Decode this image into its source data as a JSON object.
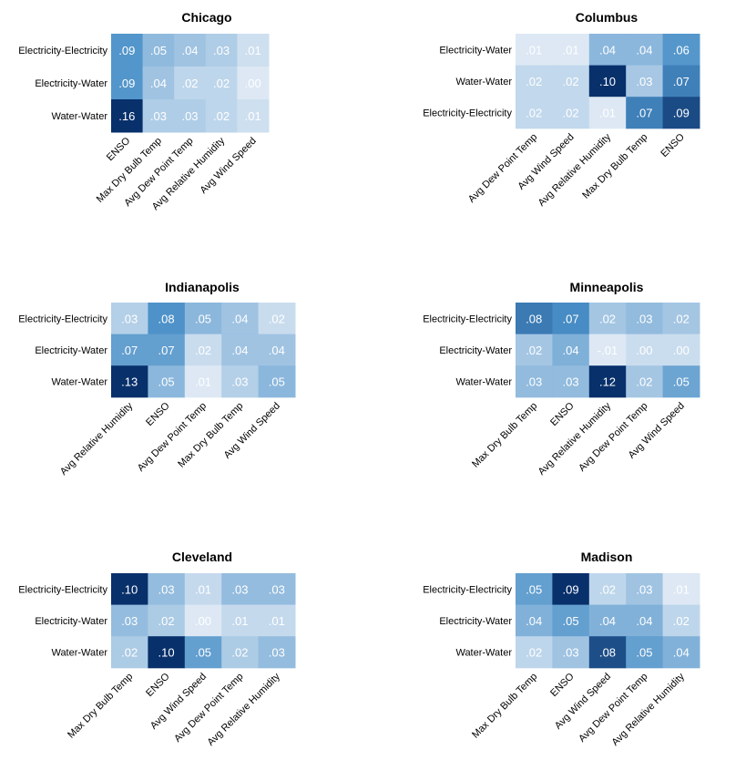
{
  "chart_data": [
    {
      "type": "heatmap",
      "title": "Chicago",
      "rows": [
        "Electricity-Electricity",
        "Electricity-Water",
        "Water-Water"
      ],
      "columns": [
        "ENSO",
        "Max Dry Bulb Temp",
        "Avg Dew Point Temp",
        "Avg Relative Humidity",
        "Avg Wind Speed"
      ],
      "values": [
        [
          0.09,
          0.05,
          0.04,
          0.03,
          0.01
        ],
        [
          0.09,
          0.04,
          0.02,
          0.02,
          0.0
        ],
        [
          0.16,
          0.03,
          0.03,
          0.02,
          0.01
        ]
      ],
      "labels": [
        [
          ".09",
          ".05",
          ".04",
          ".03",
          ".01"
        ],
        [
          ".09",
          ".04",
          ".02",
          ".02",
          ".00"
        ],
        [
          ".16",
          ".03",
          ".03",
          ".02",
          ".01"
        ]
      ]
    },
    {
      "type": "heatmap",
      "title": "Columbus",
      "rows": [
        "Electricity-Water",
        "Water-Water",
        "Electricity-Electricity"
      ],
      "columns": [
        "Avg Dew Point Temp",
        "Avg Wind Speed",
        "Avg Relative Humidity",
        "Max Dry Bulb Temp",
        "ENSO"
      ],
      "values": [
        [
          0.01,
          0.01,
          0.04,
          0.04,
          0.06
        ],
        [
          0.02,
          0.02,
          0.1,
          0.03,
          0.07
        ],
        [
          0.02,
          0.02,
          0.01,
          0.07,
          0.09
        ]
      ],
      "labels": [
        [
          ".01",
          ".01",
          ".04",
          ".04",
          ".06"
        ],
        [
          ".02",
          ".02",
          ".10",
          ".03",
          ".07"
        ],
        [
          ".02",
          ".02",
          ".01",
          ".07",
          ".09"
        ]
      ]
    },
    {
      "type": "heatmap",
      "title": "Indianapolis",
      "rows": [
        "Electricity-Electricity",
        "Electricity-Water",
        "Water-Water"
      ],
      "columns": [
        "Avg Relative Humidity",
        "ENSO",
        "Avg Dew Point Temp",
        "Max Dry Bulb Temp",
        "Avg Wind Speed"
      ],
      "values": [
        [
          0.03,
          0.08,
          0.05,
          0.04,
          0.02
        ],
        [
          0.07,
          0.07,
          0.02,
          0.04,
          0.04
        ],
        [
          0.13,
          0.05,
          0.01,
          0.03,
          0.05
        ]
      ],
      "labels": [
        [
          ".03",
          ".08",
          ".05",
          ".04",
          ".02"
        ],
        [
          ".07",
          ".07",
          ".02",
          ".04",
          ".04"
        ],
        [
          ".13",
          ".05",
          ".01",
          ".03",
          ".05"
        ]
      ]
    },
    {
      "type": "heatmap",
      "title": "Minneapolis",
      "rows": [
        "Electricity-Electricity",
        "Electricity-Water",
        "Water-Water"
      ],
      "columns": [
        "Max Dry Bulb Temp",
        "ENSO",
        "Avg Relative Humidity",
        "Avg Dew Point Temp",
        "Avg Wind Speed"
      ],
      "values": [
        [
          0.08,
          0.07,
          0.02,
          0.03,
          0.02
        ],
        [
          0.02,
          0.04,
          -0.01,
          0.0,
          0.0
        ],
        [
          0.03,
          0.03,
          0.12,
          0.02,
          0.05
        ]
      ],
      "labels": [
        [
          ".08",
          ".07",
          ".02",
          ".03",
          ".02"
        ],
        [
          ".02",
          ".04",
          "-.01",
          ".00",
          ".00"
        ],
        [
          ".03",
          ".03",
          ".12",
          ".02",
          ".05"
        ]
      ]
    },
    {
      "type": "heatmap",
      "title": "Cleveland",
      "rows": [
        "Electricity-Electricity",
        "Electricity-Water",
        "Water-Water"
      ],
      "columns": [
        "Max Dry Bulb Temp",
        "ENSO",
        "Avg Wind Speed",
        "Avg Dew Point Temp",
        "Avg Relative Humidity"
      ],
      "values": [
        [
          0.1,
          0.03,
          0.01,
          0.03,
          0.03
        ],
        [
          0.03,
          0.02,
          0.0,
          0.01,
          0.01
        ],
        [
          0.02,
          0.1,
          0.05,
          0.02,
          0.03
        ]
      ],
      "labels": [
        [
          ".10",
          ".03",
          ".01",
          ".03",
          ".03"
        ],
        [
          ".03",
          ".02",
          ".00",
          ".01",
          ".01"
        ],
        [
          ".02",
          ".10",
          ".05",
          ".02",
          ".03"
        ]
      ]
    },
    {
      "type": "heatmap",
      "title": "Madison",
      "rows": [
        "Electricity-Electricity",
        "Electricity-Water",
        "Water-Water"
      ],
      "columns": [
        "Max Dry Bulb Temp",
        "ENSO",
        "Avg Wind Speed",
        "Avg Dew Point Temp",
        "Avg Relative Humidity"
      ],
      "values": [
        [
          0.05,
          0.09,
          0.02,
          0.03,
          0.01
        ],
        [
          0.04,
          0.05,
          0.04,
          0.04,
          0.02
        ],
        [
          0.02,
          0.03,
          0.08,
          0.05,
          0.04
        ]
      ],
      "labels": [
        [
          ".05",
          ".09",
          ".02",
          ".03",
          ".01"
        ],
        [
          ".04",
          ".05",
          ".04",
          ".04",
          ".02"
        ],
        [
          ".02",
          ".03",
          ".08",
          ".05",
          ".04"
        ]
      ]
    }
  ],
  "colors": {
    "low": "#dde8f4",
    "mid": "#4a90c8",
    "high": "#08306b",
    "cell_text": "#ffffff"
  }
}
